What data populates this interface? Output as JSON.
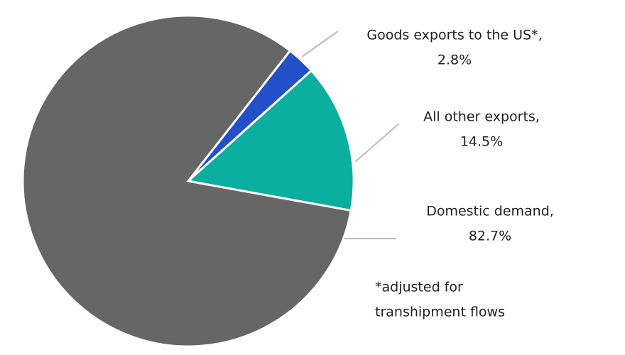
{
  "chart_data": {
    "type": "pie",
    "categories": [
      "Goods exports to the US*,",
      "All other exports,",
      "Domestic demand,"
    ],
    "values": [
      2.8,
      14.5,
      82.7
    ],
    "value_labels": [
      "2.8%",
      "14.5%",
      "82.7%"
    ],
    "colors": [
      "#2350c8",
      "#0aafa0",
      "#666666"
    ],
    "note": [
      "*adjusted for",
      "transhipment flows"
    ]
  }
}
